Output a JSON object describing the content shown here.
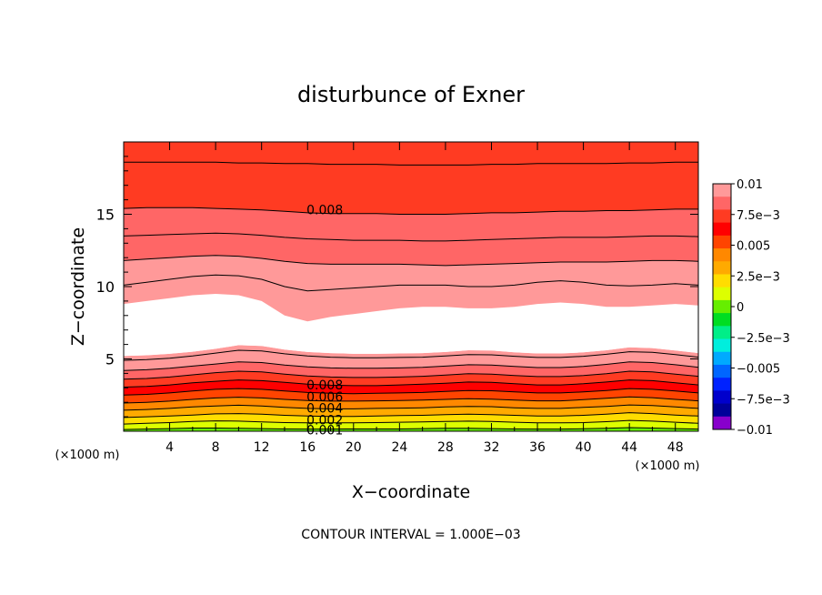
{
  "chart_data": {
    "type": "heatmap",
    "title": "disturbunce of Exner",
    "xlabel": "X−coordinate",
    "ylabel": "Z−coordinate",
    "x_unit_left": "(×1000 m)",
    "x_unit_right": "(×1000 m)",
    "footer": "CONTOUR INTERVAL = 1.000E−03",
    "xlim": [
      0,
      50
    ],
    "ylim": [
      0,
      20
    ],
    "x_ticks": [
      "4",
      "8",
      "12",
      "16",
      "20",
      "24",
      "28",
      "32",
      "36",
      "40",
      "44",
      "48"
    ],
    "y_ticks": [
      "5",
      "10",
      "15"
    ],
    "colorbar": {
      "range": [
        -0.01,
        0.01
      ],
      "labels": [
        "0.01",
        "7.5e−3",
        "0.005",
        "2.5e−3",
        "0",
        "−2.5e−3",
        "−0.005",
        "−7.5e−3",
        "−0.01"
      ],
      "colors": [
        "#ff9999",
        "#ff6666",
        "#ff3b22",
        "#ff0000",
        "#ff4400",
        "#ff8800",
        "#ffaa00",
        "#ffdd00",
        "#ddff00",
        "#66ee00",
        "#00dd22",
        "#00ee88",
        "#00eedd",
        "#00aaff",
        "#0066ff",
        "#0022ff",
        "#0000cc",
        "#000099",
        "#8800cc"
      ]
    },
    "contour_labels": [
      "0.008",
      "0.008",
      "0.006",
      "0.004",
      "0.002",
      "0.001"
    ],
    "series": [
      {
        "level": 0.001,
        "z": [
          0.12,
          0.15,
          0.18,
          0.22,
          0.22,
          0.2,
          0.18,
          0.16,
          0.15,
          0.15,
          0.16,
          0.16,
          0.16,
          0.18,
          0.2,
          0.2,
          0.18,
          0.16,
          0.15,
          0.15,
          0.17,
          0.2,
          0.25,
          0.22,
          0.18,
          0.15
        ]
      },
      {
        "level": 0.002,
        "z": [
          0.5,
          0.55,
          0.6,
          0.68,
          0.72,
          0.7,
          0.65,
          0.6,
          0.58,
          0.58,
          0.58,
          0.6,
          0.62,
          0.65,
          0.68,
          0.7,
          0.67,
          0.62,
          0.58,
          0.58,
          0.6,
          0.66,
          0.75,
          0.7,
          0.62,
          0.55
        ]
      },
      {
        "level": 0.003,
        "z": [
          0.95,
          1.0,
          1.05,
          1.12,
          1.2,
          1.22,
          1.18,
          1.1,
          1.05,
          1.02,
          1.02,
          1.05,
          1.08,
          1.1,
          1.15,
          1.18,
          1.15,
          1.1,
          1.05,
          1.05,
          1.1,
          1.18,
          1.28,
          1.22,
          1.12,
          1.05
        ]
      },
      {
        "level": 0.004,
        "z": [
          1.45,
          1.5,
          1.58,
          1.68,
          1.75,
          1.8,
          1.75,
          1.65,
          1.58,
          1.55,
          1.55,
          1.58,
          1.6,
          1.62,
          1.68,
          1.72,
          1.7,
          1.62,
          1.58,
          1.58,
          1.65,
          1.72,
          1.82,
          1.78,
          1.68,
          1.58
        ]
      },
      {
        "level": 0.005,
        "z": [
          1.95,
          2.0,
          2.08,
          2.2,
          2.3,
          2.35,
          2.3,
          2.2,
          2.12,
          2.08,
          2.08,
          2.1,
          2.12,
          2.15,
          2.2,
          2.25,
          2.22,
          2.15,
          2.1,
          2.1,
          2.18,
          2.28,
          2.38,
          2.32,
          2.2,
          2.1
        ]
      },
      {
        "level": 0.006,
        "z": [
          2.5,
          2.55,
          2.65,
          2.78,
          2.9,
          2.95,
          2.9,
          2.78,
          2.68,
          2.62,
          2.6,
          2.62,
          2.65,
          2.68,
          2.75,
          2.82,
          2.8,
          2.72,
          2.65,
          2.65,
          2.72,
          2.82,
          2.95,
          2.9,
          2.78,
          2.65
        ]
      },
      {
        "level": 0.007,
        "z": [
          3.05,
          3.1,
          3.2,
          3.35,
          3.45,
          3.55,
          3.5,
          3.38,
          3.25,
          3.18,
          3.15,
          3.15,
          3.2,
          3.25,
          3.32,
          3.4,
          3.38,
          3.28,
          3.2,
          3.2,
          3.28,
          3.4,
          3.55,
          3.5,
          3.35,
          3.2
        ]
      },
      {
        "level": 0.008,
        "z": [
          3.6,
          3.65,
          3.75,
          3.9,
          4.05,
          4.15,
          4.1,
          3.95,
          3.82,
          3.75,
          3.72,
          3.72,
          3.75,
          3.8,
          3.88,
          3.98,
          3.95,
          3.85,
          3.78,
          3.78,
          3.85,
          3.98,
          4.15,
          4.1,
          3.95,
          3.8
        ]
      },
      {
        "level": 0.009,
        "z": [
          4.2,
          4.25,
          4.35,
          4.5,
          4.65,
          4.8,
          4.75,
          4.58,
          4.45,
          4.38,
          4.35,
          4.35,
          4.38,
          4.42,
          4.5,
          4.6,
          4.58,
          4.48,
          4.4,
          4.4,
          4.48,
          4.62,
          4.8,
          4.75,
          4.6,
          4.42
        ]
      },
      {
        "level": 0.0095,
        "z": [
          4.9,
          4.95,
          5.05,
          5.2,
          5.4,
          5.6,
          5.55,
          5.35,
          5.2,
          5.12,
          5.08,
          5.08,
          5.1,
          5.12,
          5.2,
          5.3,
          5.28,
          5.18,
          5.1,
          5.1,
          5.18,
          5.32,
          5.5,
          5.45,
          5.3,
          5.12
        ]
      },
      {
        "level": 0.0098,
        "z": [
          5.2,
          5.25,
          5.35,
          5.5,
          5.7,
          5.95,
          5.9,
          5.65,
          5.48,
          5.4,
          5.35,
          5.35,
          5.38,
          5.4,
          5.48,
          5.6,
          5.58,
          5.45,
          5.38,
          5.38,
          5.45,
          5.6,
          5.8,
          5.75,
          5.58,
          5.4
        ]
      },
      {
        "level": 0.0098,
        "z": [
          8.8,
          9.0,
          9.2,
          9.4,
          9.5,
          9.4,
          9.0,
          8.0,
          7.6,
          7.9,
          8.1,
          8.3,
          8.5,
          8.6,
          8.6,
          8.5,
          8.5,
          8.6,
          8.8,
          8.9,
          8.8,
          8.6,
          8.6,
          8.7,
          8.8,
          8.7
        ]
      },
      {
        "level": 0.0095,
        "z": [
          10.1,
          10.3,
          10.5,
          10.7,
          10.8,
          10.75,
          10.5,
          10.0,
          9.7,
          9.8,
          9.9,
          10.0,
          10.1,
          10.1,
          10.1,
          10.0,
          10.0,
          10.1,
          10.3,
          10.4,
          10.3,
          10.1,
          10.05,
          10.1,
          10.2,
          10.1
        ]
      },
      {
        "level": 0.009,
        "z": [
          11.8,
          11.9,
          12.0,
          12.1,
          12.15,
          12.1,
          11.95,
          11.75,
          11.6,
          11.55,
          11.55,
          11.55,
          11.55,
          11.5,
          11.45,
          11.5,
          11.55,
          11.6,
          11.65,
          11.7,
          11.7,
          11.7,
          11.75,
          11.8,
          11.8,
          11.75
        ]
      },
      {
        "level": 0.0085,
        "z": [
          13.5,
          13.55,
          13.6,
          13.65,
          13.7,
          13.65,
          13.55,
          13.4,
          13.3,
          13.25,
          13.2,
          13.2,
          13.2,
          13.15,
          13.15,
          13.2,
          13.25,
          13.3,
          13.35,
          13.4,
          13.4,
          13.4,
          13.45,
          13.5,
          13.5,
          13.45
        ]
      },
      {
        "level": 0.008,
        "z": [
          15.4,
          15.45,
          15.45,
          15.45,
          15.4,
          15.35,
          15.3,
          15.2,
          15.1,
          15.05,
          15.05,
          15.05,
          15.0,
          15.0,
          15.0,
          15.05,
          15.1,
          15.1,
          15.15,
          15.2,
          15.2,
          15.25,
          15.25,
          15.3,
          15.35,
          15.35
        ]
      },
      {
        "level": 0.0075,
        "z": [
          18.6,
          18.6,
          18.6,
          18.6,
          18.6,
          18.55,
          18.55,
          18.5,
          18.5,
          18.45,
          18.45,
          18.45,
          18.4,
          18.4,
          18.4,
          18.4,
          18.45,
          18.45,
          18.5,
          18.5,
          18.5,
          18.5,
          18.55,
          18.55,
          18.6,
          18.6
        ]
      }
    ]
  }
}
